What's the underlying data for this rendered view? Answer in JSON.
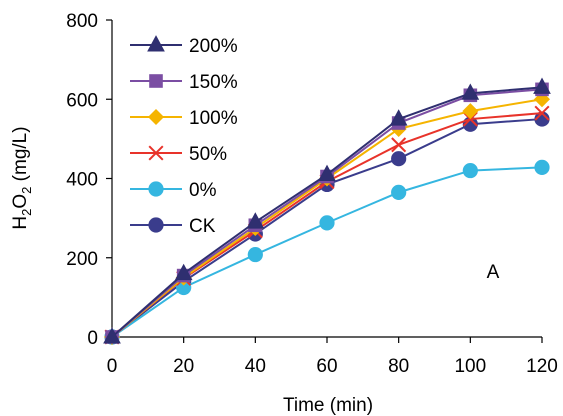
{
  "chart_data": {
    "type": "line",
    "title": "",
    "xlabel": "Time (min)",
    "ylabel": {
      "base": "H",
      "sub1": "2",
      "mid": "O",
      "sub2": "2",
      "unit": " (mg/L)"
    },
    "panel_label": "A",
    "xlim": [
      0,
      120
    ],
    "ylim": [
      0,
      800
    ],
    "xticks": [
      "0",
      "20",
      "40",
      "60",
      "80",
      "100",
      "120"
    ],
    "yticks": [
      "0",
      "200",
      "400",
      "600",
      "800"
    ],
    "grid": false,
    "legend_position": "top-left",
    "x": [
      0,
      20,
      40,
      60,
      80,
      100,
      120
    ],
    "series": [
      {
        "name": "200%",
        "color": "#2f2f70",
        "marker": "triangle",
        "values": [
          0,
          160,
          290,
          410,
          550,
          615,
          630
        ]
      },
      {
        "name": "150%",
        "color": "#7b4ea3",
        "marker": "square",
        "values": [
          0,
          155,
          282,
          405,
          540,
          610,
          625
        ]
      },
      {
        "name": "100%",
        "color": "#f5b400",
        "marker": "diamond",
        "values": [
          0,
          150,
          275,
          400,
          525,
          570,
          600
        ]
      },
      {
        "name": "50%",
        "color": "#e8332a",
        "marker": "x",
        "values": [
          0,
          148,
          268,
          392,
          485,
          550,
          565
        ]
      },
      {
        "name": "0%",
        "color": "#35b6e0",
        "marker": "circle",
        "values": [
          0,
          125,
          208,
          288,
          365,
          420,
          428
        ]
      },
      {
        "name": "CK",
        "color": "#3a3c8c",
        "marker": "circle",
        "values": [
          0,
          140,
          260,
          385,
          450,
          537,
          550
        ]
      }
    ]
  }
}
